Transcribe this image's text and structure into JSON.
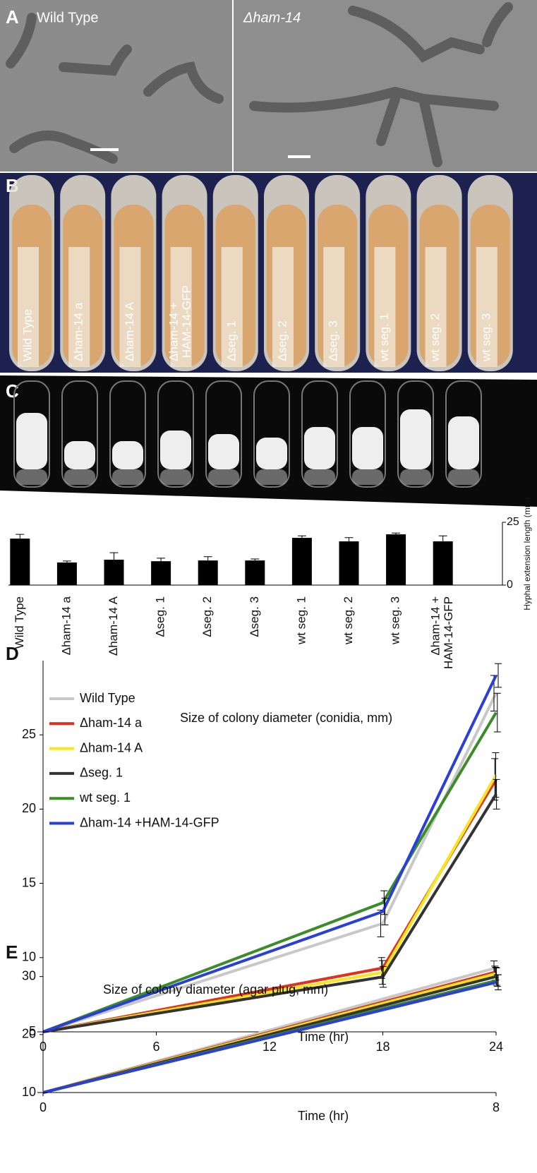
{
  "panels": {
    "A": {
      "label": "A",
      "left": "Wild Type",
      "right": "Δham-14"
    },
    "B": {
      "label": "B",
      "tubes": [
        "Wild Type",
        "Δham-14 a",
        "Δham-14 A",
        "Δham-14 + HAM-14-GFP",
        "Δseg. 1",
        "Δseg. 2",
        "Δseg. 3",
        "wt seg. 1",
        "wt seg. 2",
        "wt seg. 3"
      ]
    },
    "C": {
      "label": "C"
    }
  },
  "chart_data": [
    {
      "type": "bar",
      "ylabel": "Hyphal extension length (mm)",
      "categories": [
        "Wild Type",
        "Δham-14 a",
        "Δham-14 A",
        "Δseg. 1",
        "Δseg. 2",
        "Δseg. 3",
        "wt seg. 1",
        "wt seg. 2",
        "wt seg. 3",
        "Δham-14 + HAM-14-GFP"
      ],
      "values": [
        18.5,
        9.0,
        10.1,
        9.5,
        9.8,
        9.8,
        18.8,
        17.4,
        20.2,
        17.4
      ],
      "errors": [
        1.7,
        0.6,
        2.8,
        1.2,
        1.5,
        0.6,
        0.8,
        1.5,
        0.5,
        2.2
      ],
      "color": "#000000",
      "ylim": [
        0,
        25
      ],
      "yticks": [
        0,
        25
      ]
    },
    {
      "type": "line",
      "panel": "D",
      "title": "Size of colony diameter (conidia, mm)",
      "xlabel": "Time (hr)",
      "x": [
        0,
        18,
        24
      ],
      "xlim": [
        0,
        24
      ],
      "xticks": [
        0,
        6,
        12,
        18,
        24
      ],
      "ylim": [
        5,
        30
      ],
      "yticks": [
        5,
        10,
        15,
        20,
        25
      ],
      "series": [
        {
          "name": "Wild Type",
          "color": "#c8c8c8",
          "values": [
            5,
            12.3,
            27.8
          ],
          "errors": [
            0,
            0.9,
            1.2
          ]
        },
        {
          "name": "Δham-14 a",
          "color": "#e0301e",
          "values": [
            5,
            9.3,
            22.0
          ],
          "errors": [
            0,
            0.7,
            1.4
          ]
        },
        {
          "name": "Δham-14 A",
          "color": "#f5e61e",
          "values": [
            5,
            9.0,
            22.3
          ],
          "errors": [
            0,
            0.8,
            1.5
          ]
        },
        {
          "name": "Δseg. 1",
          "color": "#333333",
          "values": [
            5,
            8.7,
            21.0
          ],
          "errors": [
            0,
            0.7,
            1.0
          ]
        },
        {
          "name": "wt seg. 1",
          "color": "#3c8c28",
          "values": [
            5,
            13.7,
            26.5
          ],
          "errors": [
            0,
            0.8,
            1.3
          ]
        },
        {
          "name": "Δham-14 +HAM-14-GFP",
          "color": "#2a3ed8",
          "values": [
            5,
            13.1,
            29.0
          ],
          "errors": [
            0,
            0.9,
            0.8
          ]
        }
      ]
    },
    {
      "type": "line",
      "panel": "E",
      "title": "Size of colony diameter (agar plug, mm)",
      "xlabel": "Time (hr)",
      "x": [
        0,
        8
      ],
      "xlim": [
        0,
        8
      ],
      "xticks": [
        0,
        8
      ],
      "ylim": [
        10,
        33
      ],
      "yticks": [
        10,
        20,
        30
      ],
      "series": [
        {
          "color": "#c8c8c8",
          "values": [
            10,
            31.5
          ],
          "errors": [
            0,
            1.2
          ]
        },
        {
          "color": "#e0301e",
          "values": [
            10,
            30.8
          ],
          "errors": [
            0,
            1.0
          ]
        },
        {
          "color": "#f5e61e",
          "values": [
            10,
            30.5
          ],
          "errors": [
            0,
            1.1
          ]
        },
        {
          "color": "#333333",
          "values": [
            10,
            30.0
          ],
          "errors": [
            0,
            1.5
          ]
        },
        {
          "color": "#3c8c28",
          "values": [
            10,
            29.3
          ],
          "errors": [
            0,
            1.0
          ]
        },
        {
          "color": "#2a3ed8",
          "values": [
            10,
            29.0
          ],
          "errors": [
            0,
            1.3
          ]
        }
      ]
    }
  ]
}
